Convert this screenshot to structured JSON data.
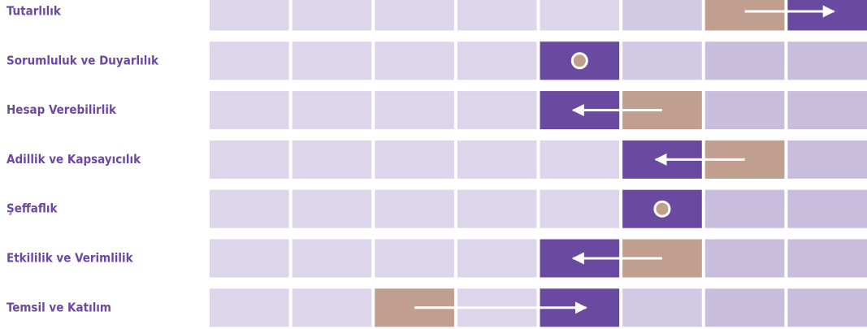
{
  "chart_data": {
    "type": "arrow",
    "categories": [
      "Tutarlılık",
      "Sorumluluk ve Duyarlılık",
      "Hesap Verebilirlik",
      "Adillik ve Kapsayıcılık",
      "Şeffaflık",
      "Etkililik ve Verimlilik",
      "Temsil ve Katılım"
    ],
    "start": [
      7,
      5,
      6,
      7,
      6,
      6,
      3
    ],
    "end": [
      8,
      5,
      5,
      6,
      6,
      5,
      5
    ],
    "xlim": [
      0,
      8
    ],
    "start_color": "#c09f8e",
    "end_color": "#6a4aa0"
  }
}
